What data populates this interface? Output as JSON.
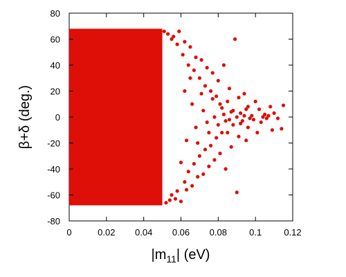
{
  "chart_data": {
    "type": "scatter",
    "title": "",
    "xlabel_parts": {
      "pre": "|m",
      "sub": "11",
      "post": "| (eV)"
    },
    "ylabel": "β+δ (deg.)",
    "xlim": [
      0,
      0.12
    ],
    "ylim": [
      -80,
      80
    ],
    "x_ticks": [
      0,
      0.02,
      0.04,
      0.06,
      0.08,
      0.1,
      0.12
    ],
    "x_tick_labels": [
      "0",
      "0.02",
      "0.04",
      "0.06",
      "0.08",
      "0.1",
      "0.12"
    ],
    "y_ticks": [
      -80,
      -60,
      -40,
      -20,
      0,
      20,
      40,
      60,
      80
    ],
    "y_tick_labels": [
      "-80",
      "-60",
      "-40",
      "-20",
      "0",
      "20",
      "40",
      "60",
      "80"
    ],
    "grid": false,
    "legend": "none",
    "marker_color": "#dd0f06",
    "dense_region": {
      "x_range": [
        0,
        0.05
      ],
      "y_range": [
        -68,
        68
      ]
    },
    "series": [
      {
        "points": [
          [
            0.051,
            66
          ],
          [
            0.052,
            -66
          ],
          [
            0.053,
            64
          ],
          [
            0.054,
            -64
          ],
          [
            0.055,
            60
          ],
          [
            0.055,
            -60
          ],
          [
            0.056,
            62
          ],
          [
            0.057,
            -63
          ],
          [
            0.058,
            56
          ],
          [
            0.058,
            -57
          ],
          [
            0.059,
            66
          ],
          [
            0.06,
            -65
          ],
          [
            0.061,
            48
          ],
          [
            0.062,
            -50
          ],
          [
            0.062,
            58
          ],
          [
            0.063,
            -56
          ],
          [
            0.064,
            40
          ],
          [
            0.064,
            -42
          ],
          [
            0.065,
            54
          ],
          [
            0.066,
            -53
          ],
          [
            0.067,
            36
          ],
          [
            0.067,
            -36
          ],
          [
            0.068,
            46
          ],
          [
            0.069,
            -46
          ],
          [
            0.07,
            30
          ],
          [
            0.07,
            -30
          ],
          [
            0.071,
            44
          ],
          [
            0.072,
            -44
          ],
          [
            0.073,
            24
          ],
          [
            0.073,
            -25
          ],
          [
            0.074,
            38
          ],
          [
            0.075,
            -38
          ],
          [
            0.076,
            20
          ],
          [
            0.076,
            -22
          ],
          [
            0.077,
            34
          ],
          [
            0.078,
            -33
          ],
          [
            0.079,
            16
          ],
          [
            0.079,
            -16
          ],
          [
            0.08,
            28
          ],
          [
            0.081,
            -28
          ],
          [
            0.081,
            10
          ],
          [
            0.082,
            -12
          ],
          [
            0.083,
            40
          ],
          [
            0.084,
            -40
          ],
          [
            0.085,
            12
          ],
          [
            0.085,
            -12
          ],
          [
            0.086,
            22
          ],
          [
            0.087,
            -23
          ],
          [
            0.088,
            5
          ],
          [
            0.088,
            -6
          ],
          [
            0.089,
            60
          ],
          [
            0.09,
            -58
          ],
          [
            0.091,
            15
          ],
          [
            0.091,
            -15
          ],
          [
            0.092,
            3
          ],
          [
            0.093,
            -3
          ],
          [
            0.094,
            18
          ],
          [
            0.095,
            -18
          ],
          [
            0.096,
            8
          ],
          [
            0.096,
            -8
          ],
          [
            0.098,
            1
          ],
          [
            0.099,
            -2
          ],
          [
            0.1,
            12
          ],
          [
            0.101,
            -12
          ],
          [
            0.102,
            6
          ],
          [
            0.103,
            -4
          ],
          [
            0.105,
            2
          ],
          [
            0.106,
            -1
          ],
          [
            0.108,
            8
          ],
          [
            0.109,
            -10
          ],
          [
            0.11,
            3
          ],
          [
            0.114,
            -9
          ],
          [
            0.115,
            9
          ],
          [
            0.062,
            20
          ],
          [
            0.063,
            -18
          ],
          [
            0.066,
            10
          ],
          [
            0.068,
            -8
          ],
          [
            0.072,
            5
          ],
          [
            0.074,
            -4
          ],
          [
            0.078,
            0
          ],
          [
            0.083,
            2
          ],
          [
            0.086,
            -2
          ],
          [
            0.09,
            0
          ],
          [
            0.094,
            1
          ],
          [
            0.097,
            -1
          ],
          [
            0.104,
            0
          ],
          [
            0.107,
            1
          ],
          [
            0.112,
            -1
          ],
          [
            0.06,
            -35
          ],
          [
            0.065,
            30
          ],
          [
            0.069,
            -20
          ],
          [
            0.071,
            18
          ],
          [
            0.075,
            -12
          ],
          [
            0.077,
            14
          ],
          [
            0.08,
            -6
          ],
          [
            0.082,
            7
          ],
          [
            0.084,
            -3
          ],
          [
            0.087,
            4
          ],
          [
            0.092,
            -5
          ],
          [
            0.095,
            6
          ]
        ]
      }
    ]
  }
}
